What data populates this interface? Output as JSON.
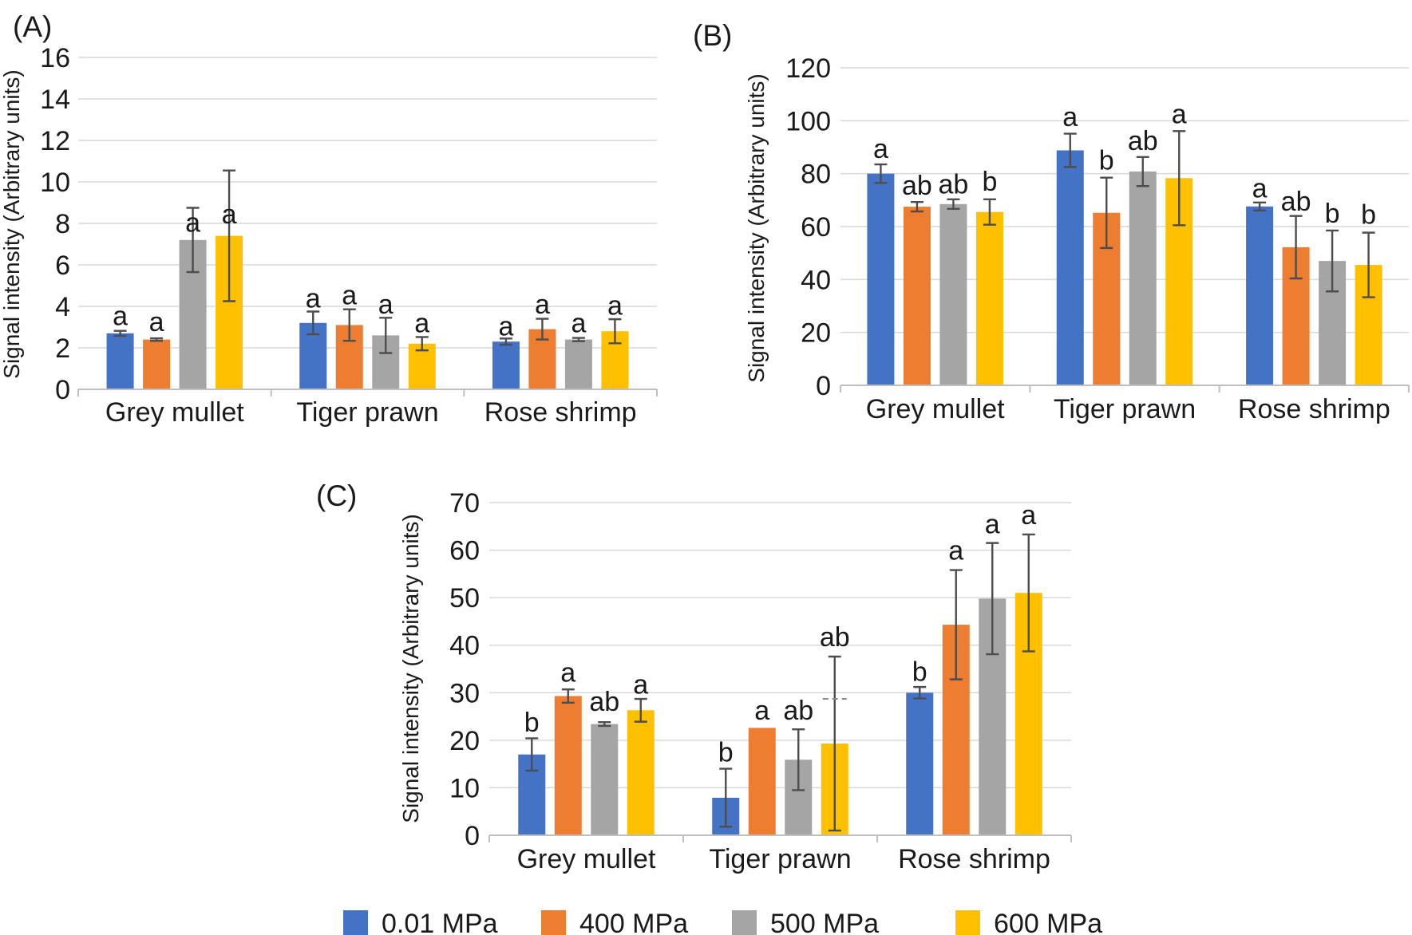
{
  "legend": {
    "position": "bottom",
    "items": [
      {
        "label": "0.01 MPa",
        "color": "#4472C4"
      },
      {
        "label": "400 MPa",
        "color": "#ED7D31"
      },
      {
        "label": "500 MPa",
        "color": "#A5A5A5"
      },
      {
        "label": "600 MPa",
        "color": "#FFC000"
      }
    ]
  },
  "chart_data": [
    {
      "type": "bar",
      "panel_label": "(A)",
      "ylabel": "Signal intensity (Arbitrary units)",
      "ylim": [
        0,
        16
      ],
      "ystep": 2,
      "grid": true,
      "categories": [
        "Grey mullet",
        "Tiger prawn",
        "Rose shrimp"
      ],
      "series": [
        {
          "name": "0.01 MPa",
          "color": "#4472C4",
          "values": [
            2.7,
            3.2,
            2.3
          ],
          "errors": [
            0.12,
            0.55,
            0.15
          ],
          "sig_letters": [
            "a",
            "a",
            "a"
          ],
          "letter_baseline_v": [
            3.1,
            3.95,
            2.6
          ]
        },
        {
          "name": "400 MPa",
          "color": "#ED7D31",
          "values": [
            2.4,
            3.1,
            2.9
          ],
          "errors": [
            0.06,
            0.76,
            0.5
          ],
          "sig_letters": [
            "a",
            "a",
            "a"
          ],
          "letter_baseline_v": [
            2.8,
            4.1,
            3.65
          ]
        },
        {
          "name": "500 MPa",
          "color": "#A5A5A5",
          "values": [
            7.2,
            2.6,
            2.4
          ],
          "errors": [
            1.55,
            0.85,
            0.08
          ],
          "sig_letters": [
            "a",
            "a",
            "a"
          ],
          "letter_baseline_v": [
            7.6,
            3.65,
            2.75
          ]
        },
        {
          "name": "600 MPa",
          "color": "#FFC000",
          "values": [
            7.4,
            2.2,
            2.8
          ],
          "errors": [
            3.15,
            0.32,
            0.58
          ],
          "sig_letters": [
            "a",
            "a",
            "a"
          ],
          "letter_baseline_v": [
            8.0,
            2.75,
            3.6
          ]
        }
      ]
    },
    {
      "type": "bar",
      "panel_label": "(B)",
      "ylabel": "Signal intensity (Arbitrary units)",
      "ylim": [
        0,
        120
      ],
      "ystep": 20,
      "grid": true,
      "categories": [
        "Grey mullet",
        "Tiger prawn",
        "Rose shrimp"
      ],
      "series": [
        {
          "name": "0.01 MPa",
          "color": "#4472C4",
          "values": [
            80,
            88.8,
            67.6
          ],
          "errors": [
            3.5,
            6.3,
            1.5
          ],
          "sig_letters": [
            "a",
            "a",
            "a"
          ],
          "letter_baseline_v": [
            86,
            98,
            71
          ]
        },
        {
          "name": "400 MPa",
          "color": "#ED7D31",
          "values": [
            67.5,
            65.2,
            52.2
          ],
          "errors": [
            1.8,
            13.3,
            11.8
          ],
          "sig_letters": [
            "ab",
            "b",
            "ab"
          ],
          "letter_baseline_v": [
            72,
            81.5,
            66
          ]
        },
        {
          "name": "500 MPa",
          "color": "#A5A5A5",
          "values": [
            68.5,
            80.8,
            47
          ],
          "errors": [
            1.8,
            5.5,
            11.5
          ],
          "sig_letters": [
            "ab",
            "ab",
            "b"
          ],
          "letter_baseline_v": [
            72.5,
            89,
            61.5
          ]
        },
        {
          "name": "600 MPa",
          "color": "#FFC000",
          "values": [
            65.5,
            78.3,
            45.5
          ],
          "errors": [
            4.8,
            17.8,
            12.2
          ],
          "sig_letters": [
            "b",
            "a",
            "b"
          ],
          "letter_baseline_v": [
            73.5,
            99,
            61
          ]
        }
      ]
    },
    {
      "type": "bar",
      "panel_label": "(C)",
      "ylabel": "Signal intensity (Arbitrary units)",
      "ylim": [
        0,
        70
      ],
      "ystep": 10,
      "grid": true,
      "categories": [
        "Grey mullet",
        "Tiger prawn",
        "Rose shrimp"
      ],
      "series": [
        {
          "name": "0.01 MPa",
          "color": "#4472C4",
          "values": [
            17,
            7.9,
            30
          ],
          "errors": [
            3.4,
            6.1,
            1.2
          ],
          "sig_letters": [
            "b",
            "b",
            "b"
          ],
          "letter_baseline_v": [
            21.8,
            15.5,
            32.5
          ]
        },
        {
          "name": "400 MPa",
          "color": "#ED7D31",
          "values": [
            29.3,
            22.6,
            44.3
          ],
          "errors": [
            1.4,
            0,
            11.5
          ],
          "sig_letters": [
            "a",
            "a",
            "a"
          ],
          "letter_baseline_v": [
            32.3,
            24.3,
            58
          ]
        },
        {
          "name": "500 MPa",
          "color": "#A5A5A5",
          "values": [
            23.4,
            15.9,
            49.8
          ],
          "errors": [
            0.4,
            6.4,
            11.7
          ],
          "sig_letters": [
            "ab",
            "ab",
            "a"
          ],
          "letter_baseline_v": [
            26.2,
            24.3,
            63.5
          ]
        },
        {
          "name": "600 MPa",
          "color": "#FFC000",
          "values": [
            26.3,
            19.3,
            51
          ],
          "errors": [
            2.4,
            18.3,
            12.3
          ],
          "sig_letters": [
            "a",
            "ab",
            "a"
          ],
          "letter_baseline_v": [
            29.8,
            39.8,
            65.5
          ],
          "dash_markers": [
            null,
            28.7,
            null
          ]
        }
      ]
    }
  ],
  "style_colors": {
    "gridline": "#D9D9D9",
    "axis_line": "#BFBFBF",
    "error_bar": "#4D4D4D",
    "text": "#1A1A1A"
  }
}
